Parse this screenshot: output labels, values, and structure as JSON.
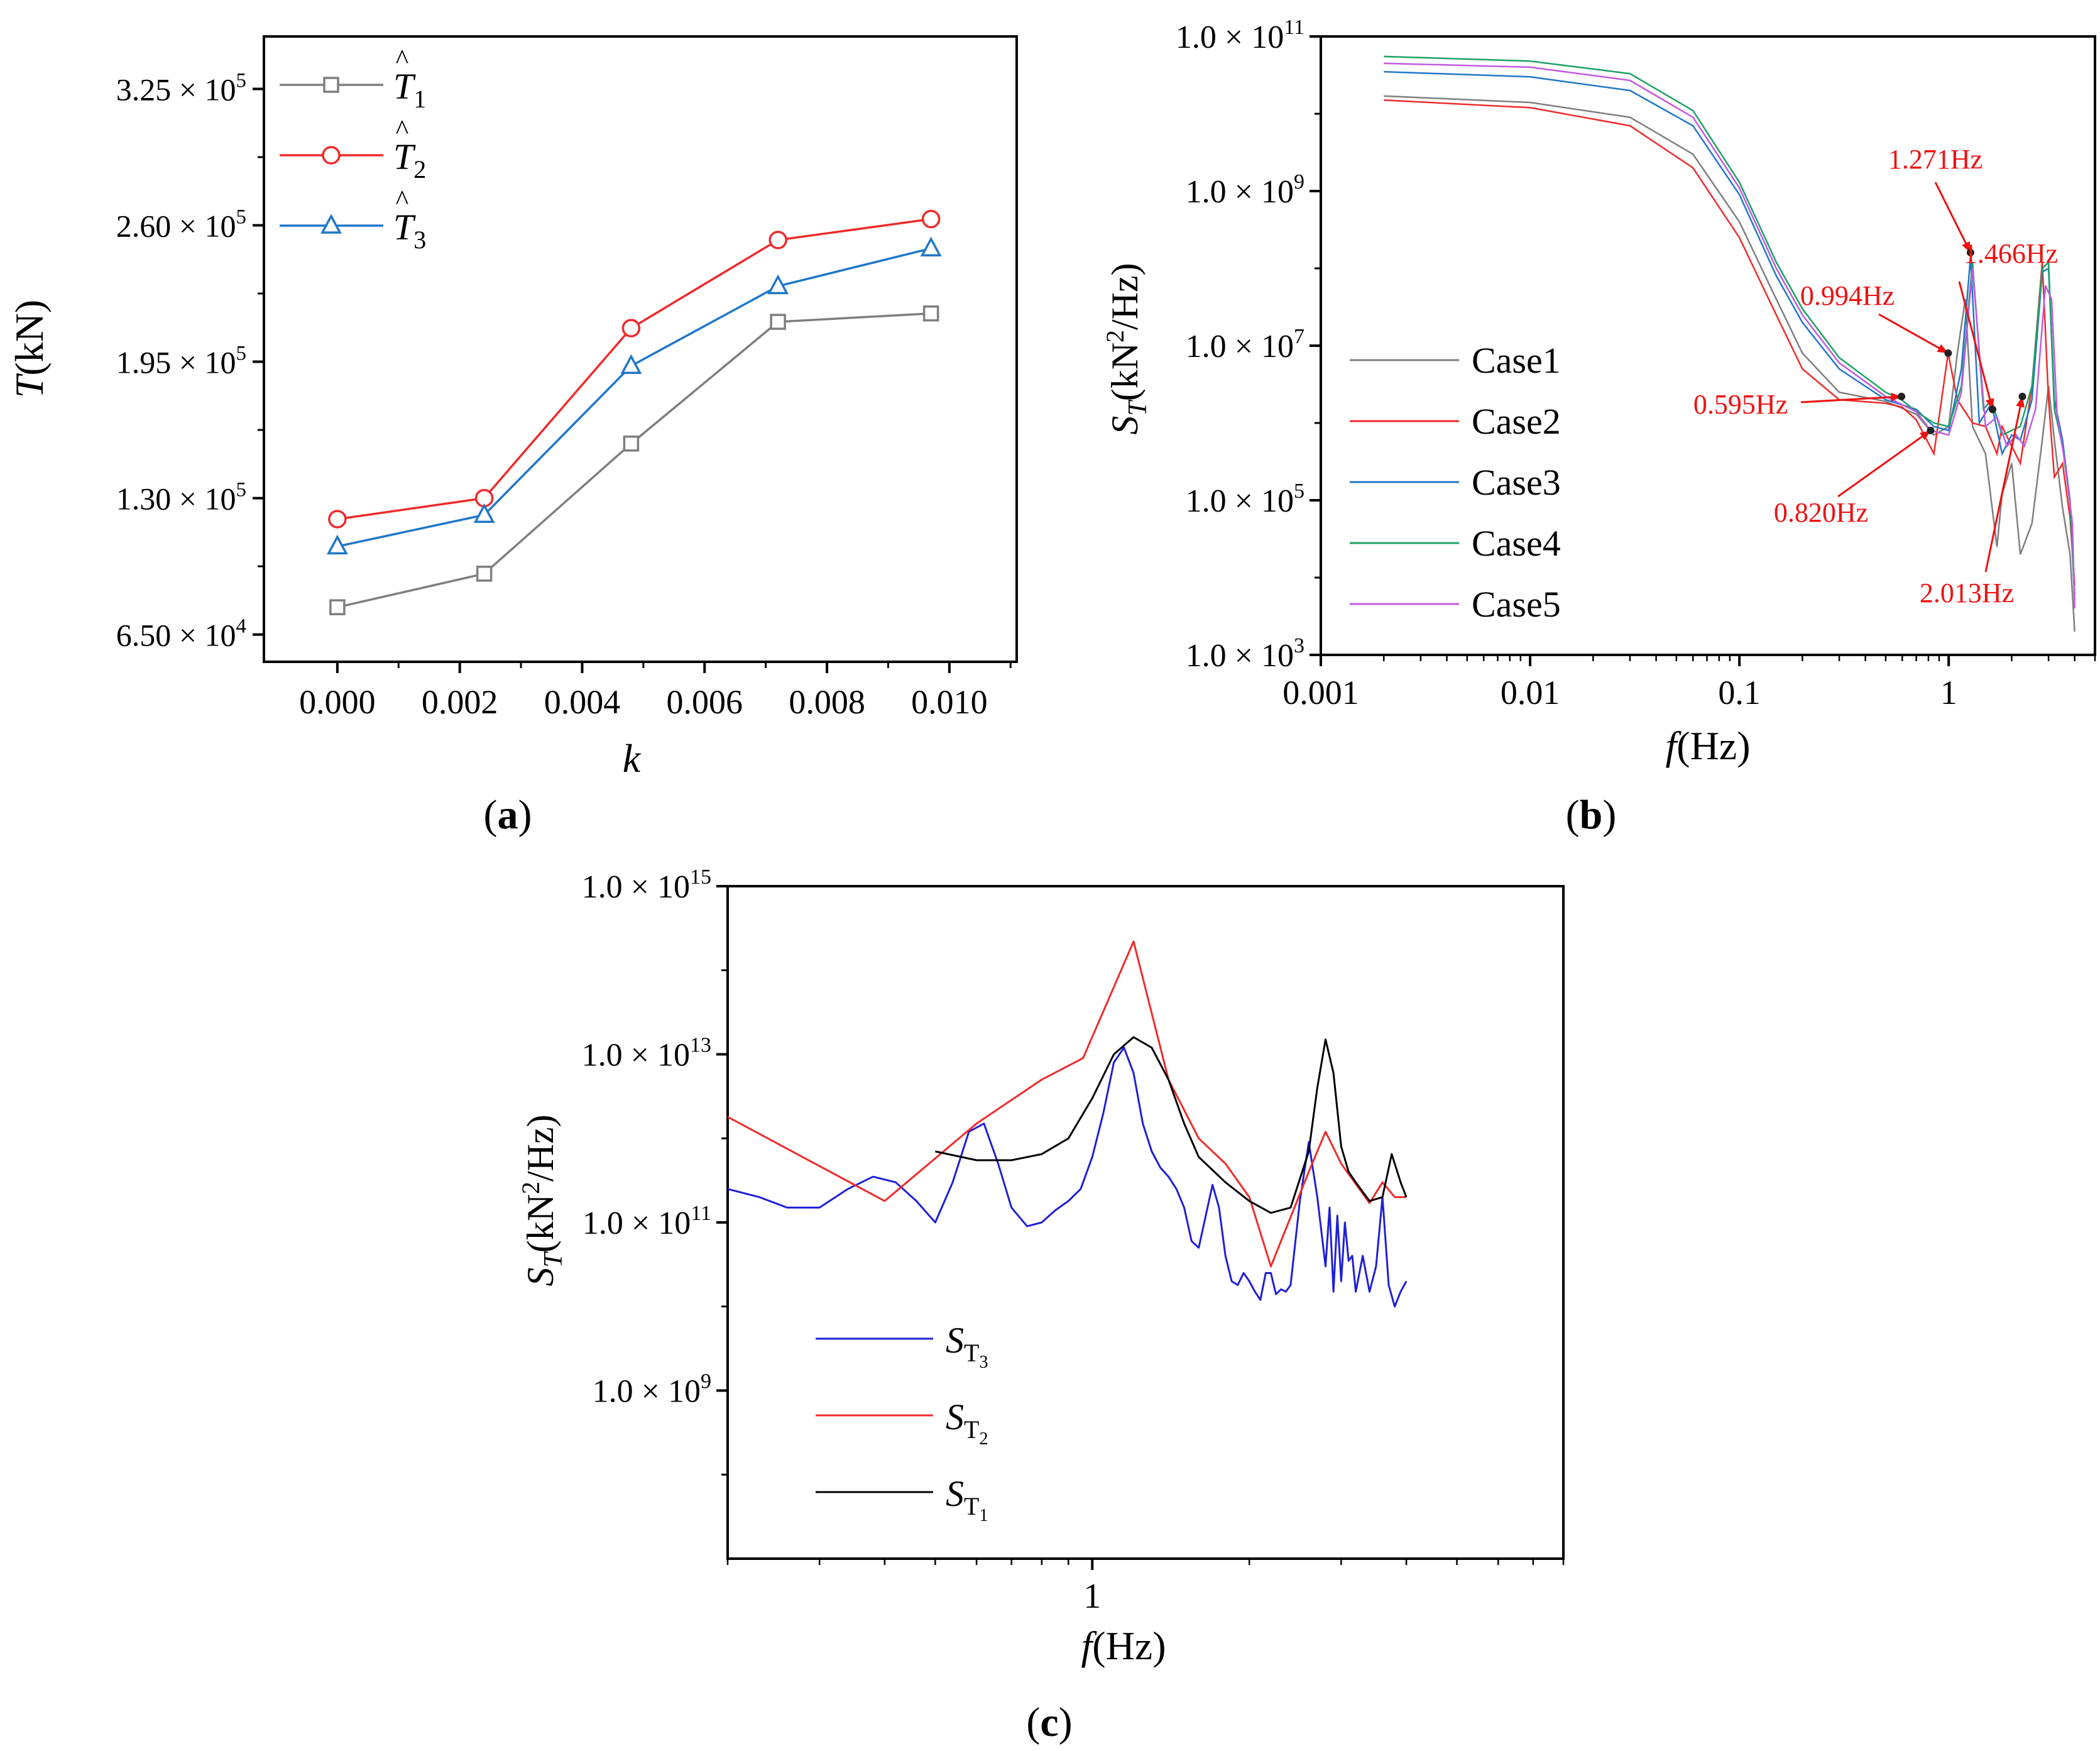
{
  "colors": {
    "gray": "#7f7f7f",
    "red": "#ef2b2b",
    "blue": "#1f77c8",
    "green": "#1aa266",
    "violet": "#c05ae0",
    "darkblue": "#1f1fd6",
    "black": "#000000",
    "annot": "#ee1111"
  },
  "chart_data": [
    {
      "id": "a",
      "type": "line",
      "panel_label": "a",
      "xlabel": "k",
      "ylabel": "T(kN)",
      "xlim": [
        -0.0012,
        0.0111
      ],
      "ylim": [
        52000,
        350000
      ],
      "x_ticks": [
        {
          "v": 0.0,
          "label": "0.000"
        },
        {
          "v": 0.002,
          "label": "0.002"
        },
        {
          "v": 0.004,
          "label": "0.004"
        },
        {
          "v": 0.006,
          "label": "0.006"
        },
        {
          "v": 0.008,
          "label": "0.008"
        },
        {
          "v": 0.01,
          "label": "0.010"
        }
      ],
      "y_ticks": [
        {
          "v": 65000,
          "mant": "6.50",
          "exp": "4"
        },
        {
          "v": 130000,
          "mant": "1.30",
          "exp": "5"
        },
        {
          "v": 195000,
          "mant": "1.95",
          "exp": "5"
        },
        {
          "v": 260000,
          "mant": "2.60",
          "exp": "5"
        },
        {
          "v": 325000,
          "mant": "3.25",
          "exp": "5"
        }
      ],
      "times_sign": "×",
      "x_base": "10",
      "series": [
        {
          "name": "T̂1",
          "label": "T",
          "sub": "1",
          "hat": "^",
          "color": "gray",
          "marker": "square",
          "x": [
            0.0,
            0.0024,
            0.0048,
            0.0072,
            0.0097
          ],
          "y": [
            78000,
            94000,
            156000,
            214000,
            218000
          ]
        },
        {
          "name": "T̂2",
          "label": "T",
          "sub": "2",
          "hat": "^",
          "color": "red",
          "marker": "circle",
          "x": [
            0.0,
            0.0024,
            0.0048,
            0.0072,
            0.0097
          ],
          "y": [
            120000,
            130000,
            211000,
            253000,
            263000
          ]
        },
        {
          "name": "T̂3",
          "label": "T",
          "sub": "3",
          "hat": "^",
          "color": "blue",
          "marker": "triangle",
          "x": [
            0.0,
            0.0024,
            0.0048,
            0.0072,
            0.0097
          ],
          "y": [
            107000,
            122000,
            193000,
            231000,
            249000
          ]
        }
      ],
      "legend": "top-left"
    },
    {
      "id": "b",
      "type": "line",
      "panel_label": "b",
      "xlabel": "f(Hz)",
      "xlabel_f": "f",
      "xlabel_unit": "(Hz)",
      "ylabel_s": "S",
      "ylabel_sub": "T",
      "ylabel_pre": "(kN",
      "ylabel_sup": "2",
      "ylabel_post": "/Hz)",
      "x_scale": "log",
      "y_scale": "log",
      "xlim": [
        0.001,
        5
      ],
      "ylim": [
        1000,
        100000000000
      ],
      "x_ticks": [
        {
          "v": 0.001,
          "label": "0.001"
        },
        {
          "v": 0.01,
          "label": "0.01"
        },
        {
          "v": 0.1,
          "label": "0.1"
        },
        {
          "v": 1,
          "label": "1"
        }
      ],
      "y_ticks": [
        {
          "v": 1000,
          "mant": "1.0",
          "exp": "3"
        },
        {
          "v": 100000,
          "mant": "1.0",
          "exp": "5"
        },
        {
          "v": 10000000,
          "mant": "1.0",
          "exp": "7"
        },
        {
          "v": 1000000000,
          "mant": "1.0",
          "exp": "9"
        },
        {
          "v": 100000000000,
          "mant": "1.0",
          "exp": "11"
        }
      ],
      "times_sign": "×",
      "base": "10",
      "series": [
        {
          "name": "Case1",
          "color": "gray",
          "x": [
            0.002,
            0.01,
            0.03,
            0.06,
            0.1,
            0.15,
            0.2,
            0.3,
            0.5,
            0.7,
            0.85,
            1.0,
            1.1,
            1.2,
            1.3,
            1.5,
            1.7,
            1.8,
            2.0,
            2.2,
            2.5,
            2.8,
            3.0,
            3.2,
            3.5,
            3.8,
            4.0
          ],
          "y": [
            17000000000,
            14000000000,
            9000000000,
            3000000000,
            400000000,
            40000000,
            8000000,
            2500000,
            1900000,
            1300000,
            700000,
            900000,
            8000000,
            40000000,
            900000,
            400000,
            25000,
            120000,
            300000,
            20000,
            50000,
            600000,
            3000000,
            600000,
            80000,
            20000,
            2000
          ]
        },
        {
          "name": "Case2",
          "color": "red",
          "x": [
            0.002,
            0.01,
            0.03,
            0.06,
            0.1,
            0.15,
            0.2,
            0.3,
            0.5,
            0.6,
            0.7,
            0.85,
            0.994,
            1.1,
            1.3,
            1.5,
            1.7,
            1.8,
            2.0,
            2.2,
            2.5,
            2.8,
            3.0,
            3.2,
            3.5,
            3.8,
            4.0
          ],
          "y": [
            15000000000,
            12000000000,
            7000000000,
            2000000000,
            250000000,
            25000000,
            5000000,
            2000000,
            1800000,
            1600000,
            1100000,
            400000,
            8000000,
            2000000,
            1000000,
            900000,
            400000,
            900000,
            500000,
            300000,
            3000000,
            120000000,
            2000000,
            200000,
            300000,
            60000,
            8000
          ]
        },
        {
          "name": "Case3",
          "color": "blue",
          "x": [
            0.002,
            0.01,
            0.03,
            0.06,
            0.1,
            0.15,
            0.2,
            0.3,
            0.5,
            0.7,
            0.85,
            1.0,
            1.15,
            1.271,
            1.4,
            1.6,
            1.8,
            2.0,
            2.2,
            2.5,
            2.8,
            3.0,
            3.2,
            3.5,
            3.8,
            4.0
          ],
          "y": [
            35000000000,
            30000000000,
            20000000000,
            7000000000,
            900000000,
            80000000,
            20000000,
            5000000,
            2000000,
            1500000,
            900000,
            800000,
            5000000,
            140000000,
            1000000,
            1800000,
            400000,
            700000,
            600000,
            2000000,
            90000000,
            100000000,
            2000000,
            600000,
            100000,
            5000
          ]
        },
        {
          "name": "Case4",
          "color": "green",
          "x": [
            0.002,
            0.01,
            0.03,
            0.06,
            0.1,
            0.15,
            0.2,
            0.3,
            0.5,
            0.595,
            0.7,
            0.85,
            1.0,
            1.15,
            1.3,
            1.466,
            1.6,
            1.8,
            2.0,
            2.2,
            2.5,
            2.8,
            3.0,
            3.2,
            3.5,
            3.8,
            4.0
          ],
          "y": [
            55000000000,
            48000000000,
            33000000000,
            11000000000,
            1300000000,
            120000000,
            30000000,
            7000000,
            2500000,
            2000000,
            1400000,
            1000000,
            900000,
            3000000,
            120000000,
            1500000,
            2000000,
            700000,
            800000,
            900000,
            3000000,
            100000000,
            120000000,
            1500000,
            500000,
            90000,
            6000
          ]
        },
        {
          "name": "Case5",
          "color": "violet",
          "x": [
            0.002,
            0.01,
            0.03,
            0.06,
            0.1,
            0.15,
            0.2,
            0.3,
            0.5,
            0.7,
            0.82,
            1.0,
            1.15,
            1.3,
            1.5,
            1.7,
            1.9,
            2.1,
            2.3,
            2.6,
            2.9,
            3.1,
            3.3,
            3.6,
            3.9,
            4.0
          ],
          "y": [
            45000000000,
            40000000000,
            27000000000,
            9000000000,
            1100000000,
            100000000,
            25000000,
            6000000,
            2200000,
            1400000,
            800000,
            700000,
            2500000,
            100000000,
            900000,
            1200000,
            500000,
            700000,
            500000,
            1500000,
            60000000,
            40000000,
            1200000,
            300000,
            50000,
            4000
          ]
        }
      ],
      "annotations": [
        {
          "text": "1.271Hz",
          "x": 1.271,
          "y": 160000000
        },
        {
          "text": "1.466Hz",
          "x": 1.62,
          "y": 1500000
        },
        {
          "text": "0.994Hz",
          "x": 0.994,
          "y": 8000000
        },
        {
          "text": "0.595Hz",
          "x": 0.595,
          "y": 2200000
        },
        {
          "text": "0.820Hz",
          "x": 0.82,
          "y": 800000
        },
        {
          "text": "2.013Hz",
          "x": 2.25,
          "y": 2200000
        }
      ],
      "legend": "center-left"
    },
    {
      "id": "c",
      "type": "line",
      "panel_label": "c",
      "xlabel": "f(Hz)",
      "xlabel_f": "f",
      "xlabel_unit": "(Hz)",
      "ylabel_s": "S",
      "ylabel_sub": "T",
      "ylabel_pre": "(kN",
      "ylabel_sup": "2",
      "ylabel_post": "/Hz)",
      "x_scale": "log",
      "y_scale": "log",
      "xlim": [
        0.2,
        8
      ],
      "ylim": [
        10000000,
        1000000000000000
      ],
      "x_ticks": [
        {
          "v": 1,
          "label": "1"
        }
      ],
      "y_ticks": [
        {
          "v": 1000000000,
          "mant": "1.0",
          "exp": "9"
        },
        {
          "v": 100000000000,
          "mant": "1.0",
          "exp": "11"
        },
        {
          "v": 10000000000000,
          "mant": "1.0",
          "exp": "13"
        },
        {
          "v": 1000000000000000,
          "mant": "1.0",
          "exp": "15"
        }
      ],
      "times_sign": "×",
      "base": "10",
      "series": [
        {
          "name": "ST3",
          "label": "S",
          "sub": "T",
          "subsub": "3",
          "color": "darkblue",
          "x": [
            0.2,
            0.23,
            0.26,
            0.3,
            0.34,
            0.38,
            0.42,
            0.46,
            0.5,
            0.54,
            0.58,
            0.62,
            0.66,
            0.7,
            0.75,
            0.8,
            0.85,
            0.9,
            0.95,
            1.0,
            1.05,
            1.1,
            1.15,
            1.2,
            1.25,
            1.3,
            1.35,
            1.4,
            1.45,
            1.5,
            1.55,
            1.6,
            1.65,
            1.7,
            1.75,
            1.8,
            1.85,
            1.9,
            1.95,
            2.0,
            2.05,
            2.1,
            2.15,
            2.2,
            2.25,
            2.3,
            2.35,
            2.4,
            2.5,
            2.6,
            2.7,
            2.8,
            2.85,
            2.9,
            2.95,
            3.0,
            3.05,
            3.1,
            3.15,
            3.2,
            3.3,
            3.4,
            3.5,
            3.6,
            3.7,
            3.8,
            3.9,
            4.0
          ],
          "y": [
            250000000000,
            200000000000,
            150000000000,
            150000000000,
            250000000000,
            350000000000,
            300000000000,
            180000000000,
            100000000000,
            300000000000,
            1200000000000,
            1500000000000,
            500000000000,
            150000000000,
            90000000000,
            100000000000,
            140000000000,
            180000000000,
            250000000000,
            600000000000,
            2000000000000,
            8000000000000,
            12000000000000,
            6000000000000,
            1500000000000,
            700000000000,
            450000000000,
            350000000000,
            250000000000,
            150000000000,
            60000000000,
            50000000000,
            120000000000,
            280000000000,
            150000000000,
            40000000000,
            20000000000,
            18000000000,
            25000000000,
            20000000000,
            15000000000,
            12000000000,
            25000000000,
            25000000000,
            14000000000,
            16000000000,
            15000000000,
            18000000000,
            180000000000,
            900000000000,
            200000000000,
            30000000000,
            150000000000,
            15000000000,
            120000000000,
            20000000000,
            100000000000,
            35000000000,
            40000000000,
            15000000000,
            40000000000,
            15000000000,
            30000000000,
            200000000000,
            18000000000,
            10000000000,
            15000000000,
            20000000000
          ]
        },
        {
          "name": "ST2",
          "label": "S",
          "sub": "T",
          "subsub": "2",
          "color": "red",
          "x": [
            0.2,
            0.4,
            0.6,
            0.8,
            0.96,
            1.2,
            1.4,
            1.6,
            1.8,
            2.0,
            2.2,
            2.6,
            2.8,
            3.0,
            3.4,
            3.6,
            3.8,
            4.0
          ],
          "y": [
            1800000000000,
            180000000000,
            1500000000000,
            5000000000000,
            9000000000000,
            220000000000000,
            5000000000000,
            1000000000000,
            500000000000,
            200000000000,
            30000000000,
            400000000000,
            1200000000000,
            500000000000,
            170000000000,
            300000000000,
            200000000000,
            200000000000
          ]
        },
        {
          "name": "ST1",
          "label": "S",
          "sub": "T",
          "subsub": "1",
          "color": "black",
          "x": [
            0.5,
            0.6,
            0.7,
            0.8,
            0.9,
            1.0,
            1.1,
            1.2,
            1.3,
            1.4,
            1.5,
            1.6,
            1.8,
            2.0,
            2.2,
            2.4,
            2.6,
            2.7,
            2.8,
            2.9,
            3.0,
            3.1,
            3.2,
            3.4,
            3.6,
            3.75,
            3.9,
            4.0
          ],
          "y": [
            700000000000,
            550000000000,
            550000000000,
            650000000000,
            1000000000000,
            3000000000000,
            10000000000000,
            16000000000000,
            12000000000000,
            5000000000000,
            1500000000000,
            600000000000,
            300000000000,
            180000000000,
            130000000000,
            150000000000,
            700000000000,
            4000000000000,
            15000000000000,
            6000000000000,
            800000000000,
            400000000000,
            300000000000,
            180000000000,
            200000000000,
            650000000000,
            300000000000,
            200000000000
          ]
        }
      ],
      "legend": "bottom-left"
    }
  ]
}
